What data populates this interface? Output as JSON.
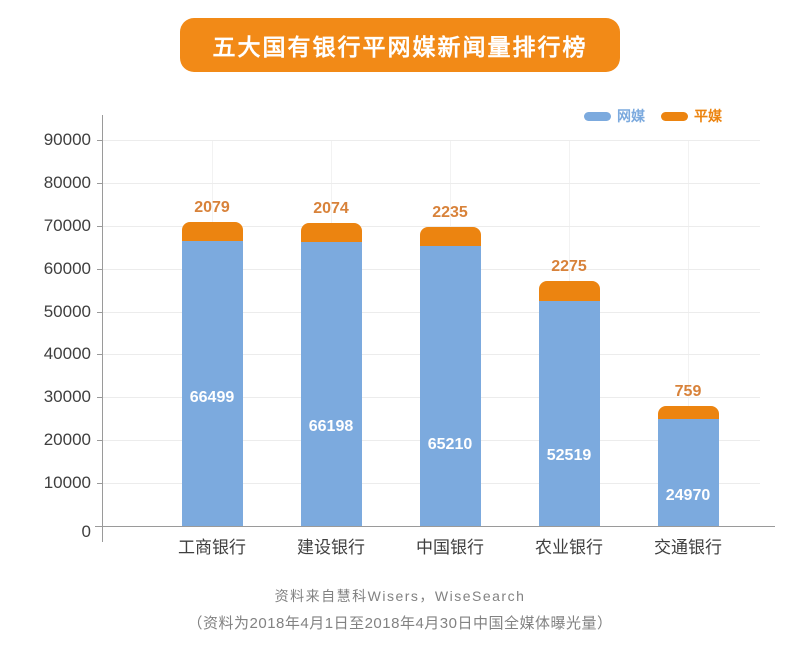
{
  "title": "五大国有银行平网媒新闻量排行榜",
  "chart_data": {
    "type": "bar",
    "stacked": true,
    "title": "五大国有银行平网媒新闻量排行榜",
    "categories": [
      "工商银行",
      "建设银行",
      "中国银行",
      "农业银行",
      "交通银行"
    ],
    "series": [
      {
        "name": "网媒",
        "color": "#7caade",
        "values": [
          66499,
          66198,
          65210,
          52519,
          24970
        ]
      },
      {
        "name": "平媒",
        "color": "#ec8410",
        "values": [
          2079,
          2074,
          2235,
          2275,
          759
        ]
      }
    ],
    "ylim": [
      0,
      90000
    ],
    "yticks": [
      0,
      10000,
      20000,
      30000,
      40000,
      50000,
      60000,
      70000,
      80000,
      90000
    ],
    "grid": true,
    "legend_position": "top-right",
    "xlabel": "",
    "ylabel": ""
  },
  "footer": {
    "line1": "资料来自慧科Wisers，WiseSearch",
    "line2": "（资料为2018年4月1日至2018年4月30日中国全媒体曝光量）"
  },
  "colors": {
    "banner_bg": "#f28a17",
    "online_blue": "#7caade",
    "print_orange": "#ec8410",
    "print_label_text": "#d8823a",
    "axis_text": "#3f3f3f",
    "grid_line": "#ececec",
    "axis_line": "#9a9a9a",
    "footer_text": "#828282",
    "bar_value_text": "#ffffff"
  }
}
